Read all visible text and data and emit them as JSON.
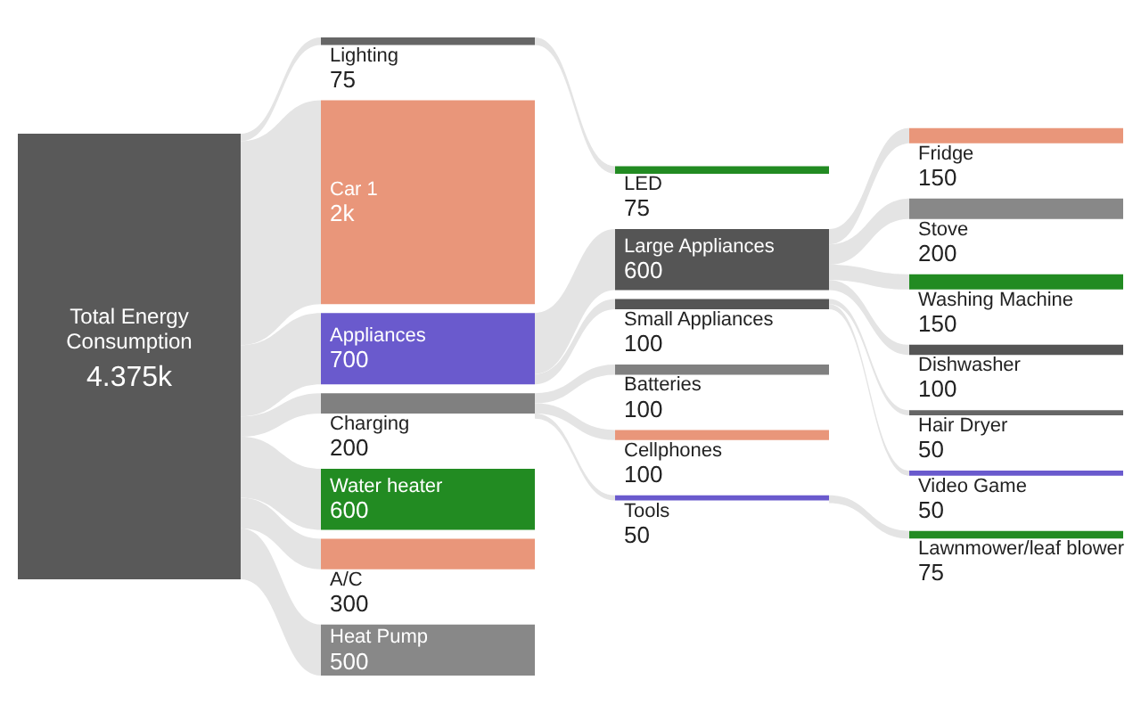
{
  "chart_data": {
    "type": "other",
    "categories": [
      "Total Energy Consumption",
      "Lighting",
      "Car 1",
      "Appliances",
      "Charging",
      "Water heater",
      "A/C",
      "Heat Pump",
      "LED",
      "Large Appliances",
      "Small Appliances",
      "Batteries",
      "Cellphones",
      "Tools",
      "Fridge",
      "Stove",
      "Washing Machine",
      "Dishwasher",
      "Hair Dryer",
      "Video Game",
      "Lawnmower/leaf blower"
    ],
    "values": [
      4375,
      75,
      2000,
      700,
      200,
      600,
      300,
      500,
      75,
      600,
      100,
      100,
      100,
      50,
      150,
      200,
      150,
      100,
      50,
      50,
      75
    ],
    "value_labels": [
      "4.375k",
      "75",
      "2k",
      "700",
      "200",
      "600",
      "300",
      "500",
      "75",
      "600",
      "100",
      "100",
      "100",
      "50",
      "150",
      "200",
      "150",
      "100",
      "50",
      "50",
      "75"
    ],
    "colors": [
      "#595959",
      "#666666",
      "#e9967a",
      "#6a5acd",
      "#808080",
      "#228b22",
      "#e9967a",
      "#888888",
      "#228b22",
      "#555555",
      "#555555",
      "#808080",
      "#e9967a",
      "#6a5acd",
      "#e9967a",
      "#888888",
      "#228b22",
      "#555555",
      "#666666",
      "#6a5acd",
      "#228b22"
    ]
  }
}
